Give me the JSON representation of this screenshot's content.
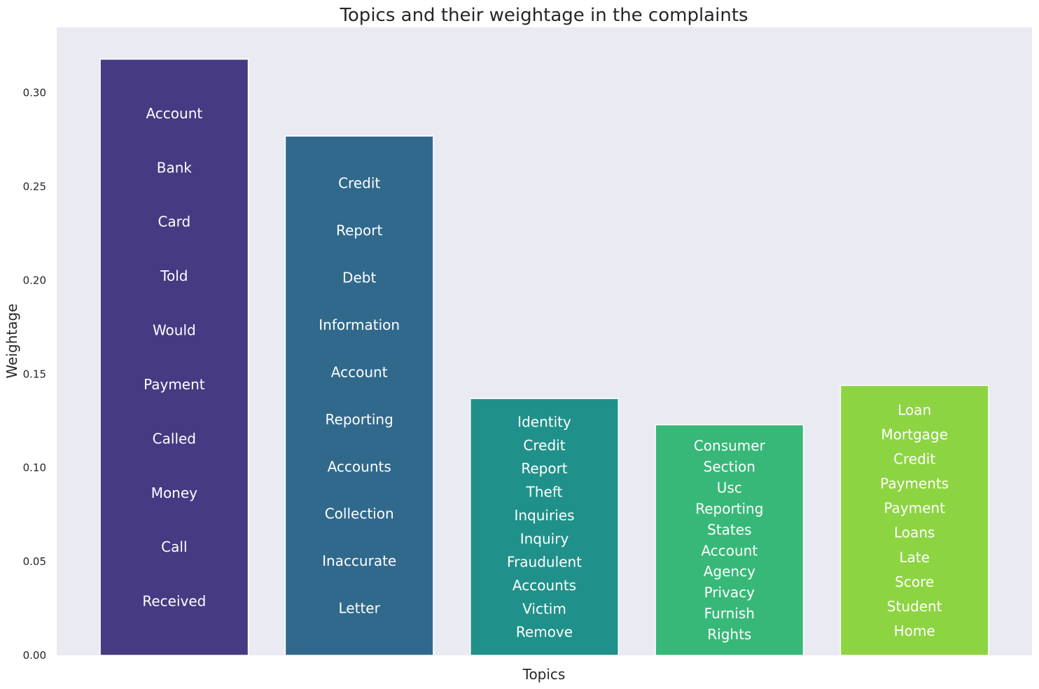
{
  "chart_data": {
    "type": "bar",
    "title": "Topics and their weightage in the complaints",
    "xlabel": "Topics",
    "ylabel": "Weightage",
    "ylim": [
      0,
      0.335
    ],
    "yticks": [
      {
        "value": 0.0,
        "label": "0.00"
      },
      {
        "value": 0.05,
        "label": "0.05"
      },
      {
        "value": 0.1,
        "label": "0.10"
      },
      {
        "value": 0.15,
        "label": "0.15"
      },
      {
        "value": 0.2,
        "label": "0.20"
      },
      {
        "value": 0.25,
        "label": "0.25"
      },
      {
        "value": 0.3,
        "label": "0.30"
      }
    ],
    "grid": false,
    "bars": [
      {
        "value": 0.318,
        "color": "#463a82",
        "words": [
          "Account",
          "Bank",
          "Card",
          "Told",
          "Would",
          "Payment",
          "Called",
          "Money",
          "Call",
          "Received"
        ]
      },
      {
        "value": 0.277,
        "color": "#31698c",
        "words": [
          "Credit",
          "Report",
          "Debt",
          "Information",
          "Account",
          "Reporting",
          "Accounts",
          "Collection",
          "Inaccurate",
          "Letter"
        ]
      },
      {
        "value": 0.137,
        "color": "#20918a",
        "words": [
          "Identity",
          "Credit",
          "Report",
          "Theft",
          "Inquiries",
          "Inquiry",
          "Fraudulent",
          "Accounts",
          "Victim",
          "Remove"
        ]
      },
      {
        "value": 0.123,
        "color": "#38b878",
        "words": [
          "Consumer",
          "Section",
          "Usc",
          "Reporting",
          "States",
          "Account",
          "Agency",
          "Privacy",
          "Furnish",
          "Rights"
        ]
      },
      {
        "value": 0.144,
        "color": "#8dd443",
        "words": [
          "Loan",
          "Mortgage",
          "Credit",
          "Payments",
          "Payment",
          "Loans",
          "Late",
          "Score",
          "Student",
          "Home"
        ]
      }
    ]
  }
}
